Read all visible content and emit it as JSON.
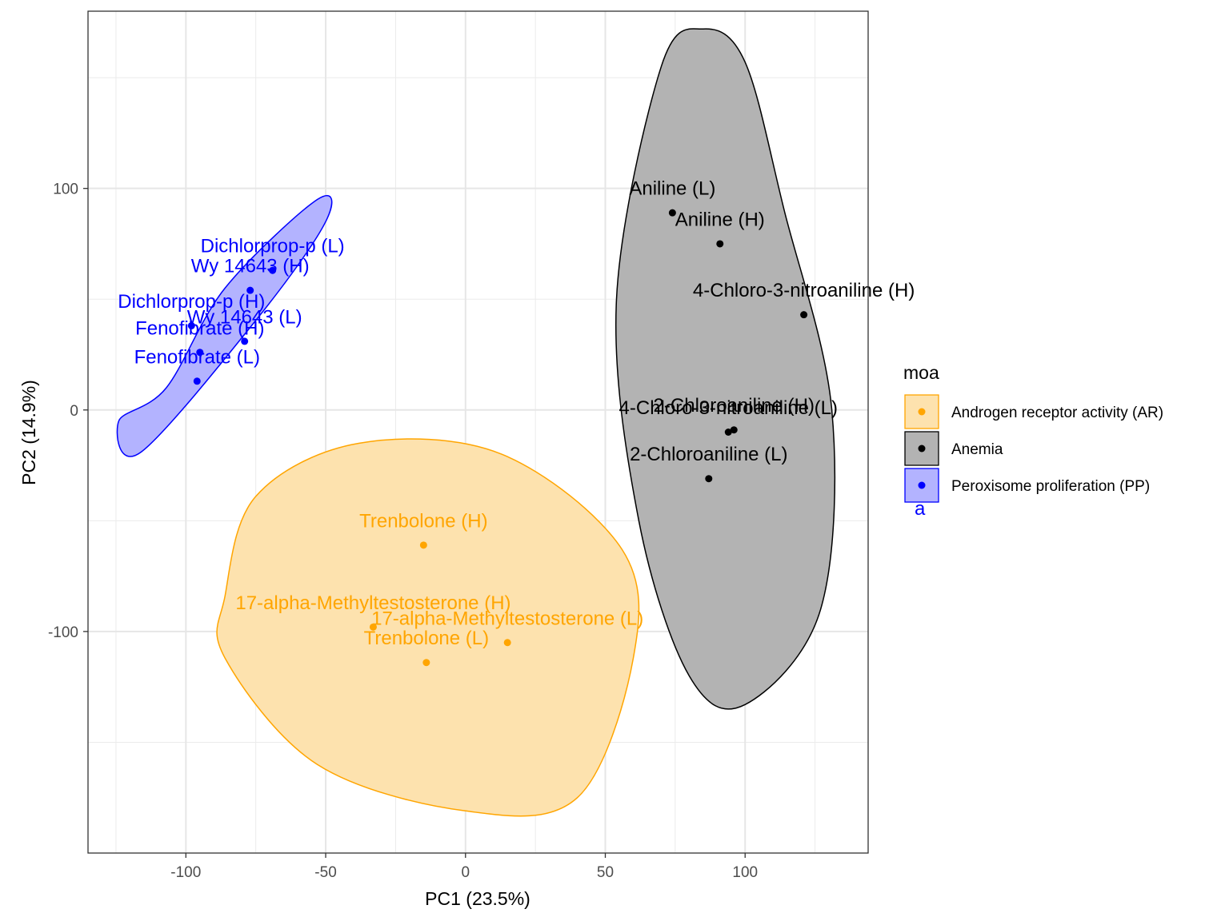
{
  "chart_data": {
    "type": "scatter",
    "xlabel": "PC1 (23.5%)",
    "ylabel": "PC2 (14.9%)",
    "xlim": [
      -135,
      144
    ],
    "ylim": [
      -200,
      180
    ],
    "x_ticks": [
      -100,
      -50,
      0,
      50,
      100
    ],
    "x_tick_labels": [
      "-100",
      "-50",
      "0",
      "50",
      "100"
    ],
    "y_ticks": [
      -100,
      0,
      100
    ],
    "y_tick_labels": [
      "-100",
      "0",
      "100"
    ],
    "grid": true,
    "legend": {
      "title": "moa",
      "position": "right",
      "entries": [
        {
          "label": "Androgen receptor activity (AR)",
          "color": "#FFA500",
          "fill": "#FDE2AE"
        },
        {
          "label": "Anemia",
          "color": "#000000",
          "fill": "#B3B3B3"
        },
        {
          "label": "Peroxisome proliferation (PP)",
          "color": "#0000FF",
          "fill": "#B3B3FF"
        }
      ]
    },
    "stray_text": {
      "text": "a",
      "color": "#0000FF"
    },
    "series": [
      {
        "name": "Androgen receptor activity (AR)",
        "color": "#FFA500",
        "ellipse_fill": "#FDE2AE",
        "ellipse_outline": [
          [
            -86,
            -84
          ],
          [
            -75,
            -39
          ],
          [
            -38,
            -15
          ],
          [
            13,
            -20
          ],
          [
            56,
            -63
          ],
          [
            60,
            -112
          ],
          [
            40,
            -175
          ],
          [
            0,
            -181
          ],
          [
            -53,
            -160
          ],
          [
            -86,
            -112
          ]
        ],
        "points": [
          {
            "label": "Trenbolone (H)",
            "x": -15,
            "y": -61
          },
          {
            "label": "17-alpha-Methyltestosterone (H)",
            "x": -33,
            "y": -98
          },
          {
            "label": "17-alpha-Methyltestosterone (L)",
            "x": 15,
            "y": -105
          },
          {
            "label": "Trenbolone (L)",
            "x": -14,
            "y": -114
          }
        ]
      },
      {
        "name": "Anemia",
        "color": "#000000",
        "ellipse_fill": "#B3B3B3",
        "ellipse_outline": [
          [
            70,
            155
          ],
          [
            85,
            172
          ],
          [
            100,
            157
          ],
          [
            114,
            90
          ],
          [
            131,
            0
          ],
          [
            127,
            -90
          ],
          [
            100,
            -133
          ],
          [
            80,
            -120
          ],
          [
            62,
            -50
          ],
          [
            54,
            50
          ]
        ],
        "points": [
          {
            "label": "Aniline (L)",
            "x": 74,
            "y": 89
          },
          {
            "label": "Aniline (H)",
            "x": 91,
            "y": 75
          },
          {
            "label": "4-Chloro-3-nitroaniline (H)",
            "x": 121,
            "y": 43
          },
          {
            "label": "2-Chloroaniline (H)",
            "x": 96,
            "y": -9
          },
          {
            "label": "4-Chloro-3-nitroaniline (L)",
            "x": 94,
            "y": -10
          },
          {
            "label": "2-Chloroaniline (L)",
            "x": 87,
            "y": -31
          }
        ]
      },
      {
        "name": "Peroxisome proliferation (PP)",
        "color": "#0000FF",
        "ellipse_fill": "#B3B3FF",
        "ellipse_outline": [
          [
            -107,
            10
          ],
          [
            -86,
            55
          ],
          [
            -53,
            95
          ],
          [
            -50,
            85
          ],
          [
            -74,
            42
          ],
          [
            -116,
            -19
          ],
          [
            -124,
            -5
          ]
        ],
        "points": [
          {
            "label": "Dichlorprop-p (L)",
            "x": -69,
            "y": 63
          },
          {
            "label": "Wy 14643 (H)",
            "x": -77,
            "y": 54
          },
          {
            "label": "Dichlorprop-p (H)",
            "x": -98,
            "y": 38
          },
          {
            "label": "Wy 14643 (L)",
            "x": -79,
            "y": 31
          },
          {
            "label": "Fenofibrate (H)",
            "x": -95,
            "y": 26
          },
          {
            "label": "Fenofibrate (L)",
            "x": -96,
            "y": 13
          }
        ]
      }
    ],
    "point_labels": [
      {
        "text": "Trenbolone (H)",
        "x": -15,
        "y": -50,
        "color": "#FFA500"
      },
      {
        "text": "17-alpha-Methyltestosterone (H)",
        "x": -33,
        "y": -87,
        "color": "#FFA500"
      },
      {
        "text": "17-alpha-Methyltestosterone (L)",
        "x": 15,
        "y": -94,
        "color": "#FFA500"
      },
      {
        "text": "Trenbolone (L)",
        "x": -14,
        "y": -103,
        "color": "#FFA500"
      },
      {
        "text": "Aniline (L)",
        "x": 74,
        "y": 100,
        "color": "#000000"
      },
      {
        "text": "Aniline (H)",
        "x": 91,
        "y": 86,
        "color": "#000000"
      },
      {
        "text": "4-Chloro-3-nitroaniline (H)",
        "x": 121,
        "y": 54,
        "color": "#000000"
      },
      {
        "text": "2-Chloroaniline (H)",
        "x": 96,
        "y": 2,
        "color": "#000000"
      },
      {
        "text": "4-Chloro-3-nitroaniline (L)",
        "x": 94,
        "y": 1,
        "color": "#000000"
      },
      {
        "text": "2-Chloroaniline (L)",
        "x": 87,
        "y": -20,
        "color": "#000000"
      },
      {
        "text": "Dichlorprop-p (L)",
        "x": -69,
        "y": 74,
        "color": "#0000FF"
      },
      {
        "text": "Wy 14643 (H)",
        "x": -77,
        "y": 65,
        "color": "#0000FF"
      },
      {
        "text": "Dichlorprop-p (H)",
        "x": -98,
        "y": 49,
        "color": "#0000FF"
      },
      {
        "text": "Wy 14643 (L)",
        "x": -79,
        "y": 42,
        "color": "#0000FF"
      },
      {
        "text": "Fenofibrate (H)",
        "x": -95,
        "y": 37,
        "color": "#0000FF"
      },
      {
        "text": "Fenofibrate (L)",
        "x": -96,
        "y": 24,
        "color": "#0000FF"
      }
    ]
  }
}
